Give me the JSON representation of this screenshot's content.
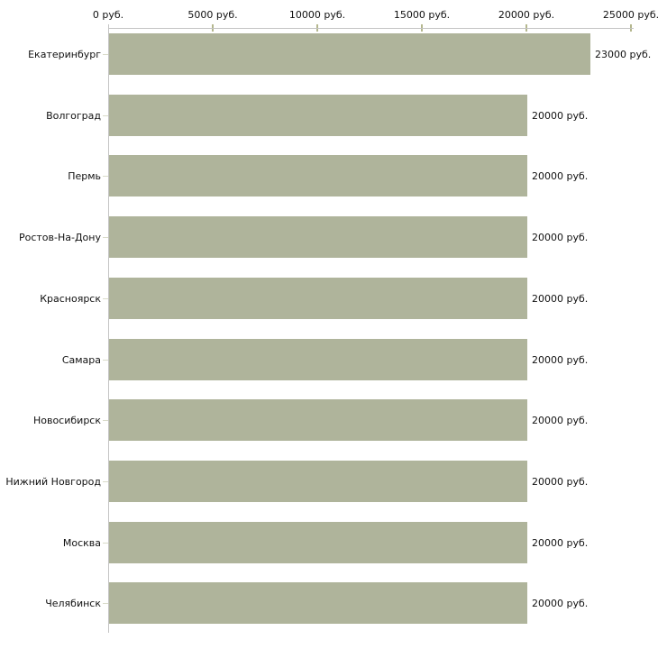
{
  "chart_data": {
    "type": "bar",
    "orientation": "horizontal",
    "title": "",
    "categories": [
      "Екатеринбург",
      "Волгоград",
      "Пермь",
      "Ростов-На-Дону",
      "Красноярск",
      "Самара",
      "Новосибирск",
      "Нижний Новгород",
      "Москва",
      "Челябинск"
    ],
    "values": [
      23000,
      20000,
      20000,
      20000,
      20000,
      20000,
      20000,
      20000,
      20000,
      20000
    ],
    "value_labels": [
      "23000 руб.",
      "20000 руб.",
      "20000 руб.",
      "20000 руб.",
      "20000 руб.",
      "20000 руб.",
      "20000 руб.",
      "20000 руб.",
      "20000 руб.",
      "20000 руб."
    ],
    "x_axis": {
      "min": 0,
      "max": 25000,
      "tick_values": [
        0,
        5000,
        10000,
        15000,
        20000,
        25000
      ],
      "tick_labels": [
        "0 руб.",
        "5000 руб.",
        "10000 руб.",
        "15000 руб.",
        "20000 руб.",
        "25000 руб."
      ],
      "unit": "руб."
    },
    "colors": {
      "bar": "#afb49b",
      "axis_line": "#c4c4c4",
      "x_tick": "#b4b78e",
      "y_tick": "#d9dbc9",
      "text": "#111111",
      "background": "#ffffff"
    },
    "grid": false,
    "legend": false
  }
}
